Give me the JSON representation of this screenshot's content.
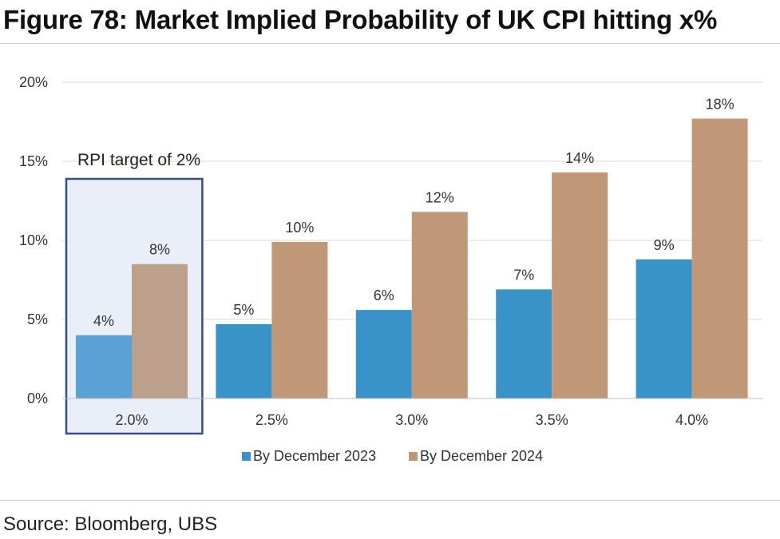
{
  "header": {
    "title": "Figure 78: Market Implied Probability of UK CPI hitting x%"
  },
  "footer": {
    "source": "Source: Bloomberg, UBS"
  },
  "chart_data": {
    "type": "bar",
    "categories": [
      "2.0%",
      "2.5%",
      "3.0%",
      "3.5%",
      "4.0%"
    ],
    "series": [
      {
        "name": "By December 2023",
        "values": [
          4,
          4.7,
          5.6,
          6.9,
          8.8
        ],
        "labels": [
          "4%",
          "5%",
          "6%",
          "7%",
          "9%"
        ],
        "color": "#3a93c8"
      },
      {
        "name": "By December 2024",
        "values": [
          8.5,
          9.9,
          11.8,
          14.3,
          17.7
        ],
        "labels": [
          "8%",
          "10%",
          "12%",
          "14%",
          "18%"
        ],
        "color": "#c09878"
      }
    ],
    "highlight": {
      "category_index": 0,
      "label": "RPI target of 2%",
      "border_color": "#2f4f8f",
      "fill_color": "#eaeef9",
      "series_colors": [
        "#5aa2d4",
        "#bca08c"
      ]
    },
    "ylim": [
      0,
      20
    ],
    "yticks": [
      0,
      5,
      10,
      15,
      20
    ],
    "ytick_labels": [
      "0%",
      "5%",
      "10%",
      "15%",
      "20%"
    ],
    "grid": true,
    "legend_position": "bottom"
  }
}
